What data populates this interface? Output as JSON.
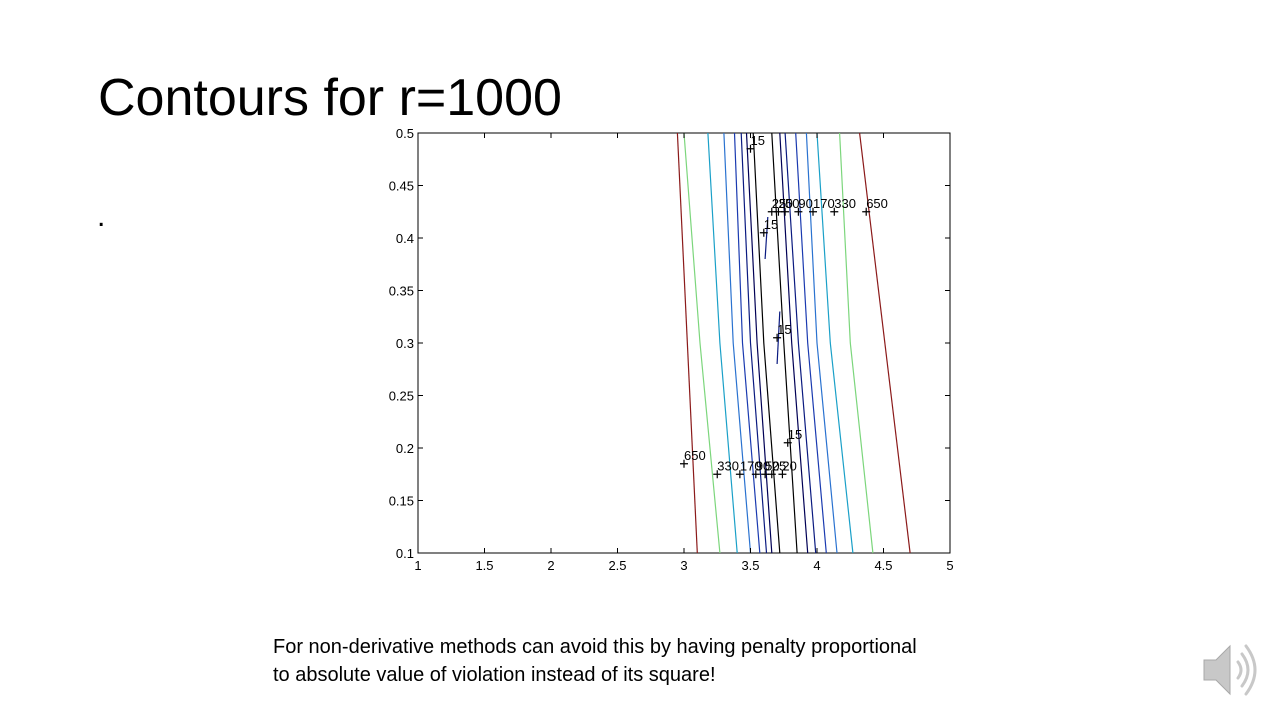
{
  "slide": {
    "title": "Contours for r=1000",
    "bullet": ".",
    "caption_line1": "For non-derivative methods can avoid this by having penalty proportional",
    "caption_line2": "to absolute value of violation instead of its square!",
    "audio_icon": "speaker-icon"
  },
  "chart_data": {
    "type": "contour",
    "title": "",
    "xlabel": "",
    "ylabel": "",
    "xlim": [
      1,
      5
    ],
    "ylim": [
      0.1,
      0.5
    ],
    "xticks": [
      "1",
      "1.5",
      "2",
      "2.5",
      "3",
      "3.5",
      "4",
      "4.5",
      "5"
    ],
    "yticks": [
      "0.1",
      "0.15",
      "0.2",
      "0.25",
      "0.3",
      "0.35",
      "0.4",
      "0.45",
      "0.5"
    ],
    "grid": false,
    "colors": {
      "650": "#8b1a1a",
      "330": "#7cd67c",
      "170": "#1aa0c8",
      "90": "#2a72d0",
      "50": "#1a3ab0",
      "25": "#0a1a80",
      "20": "#000055",
      "15": "#000000"
    },
    "contours": [
      {
        "level": "650",
        "points": [
          [
            3.1,
            0.1
          ],
          [
            2.95,
            0.5
          ]
        ]
      },
      {
        "level": "650",
        "points": [
          [
            4.7,
            0.1
          ],
          [
            4.32,
            0.5
          ]
        ]
      },
      {
        "level": "330",
        "points": [
          [
            3.27,
            0.1
          ],
          [
            3.12,
            0.3
          ],
          [
            3.0,
            0.5
          ]
        ]
      },
      {
        "level": "330",
        "points": [
          [
            4.42,
            0.1
          ],
          [
            4.25,
            0.3
          ],
          [
            4.17,
            0.5
          ]
        ]
      },
      {
        "level": "170",
        "points": [
          [
            3.4,
            0.1
          ],
          [
            3.27,
            0.3
          ],
          [
            3.18,
            0.5
          ]
        ]
      },
      {
        "level": "170",
        "points": [
          [
            4.27,
            0.1
          ],
          [
            4.1,
            0.3
          ],
          [
            4.0,
            0.5
          ]
        ]
      },
      {
        "level": "90",
        "points": [
          [
            3.5,
            0.1
          ],
          [
            3.37,
            0.3
          ],
          [
            3.3,
            0.5
          ]
        ]
      },
      {
        "level": "90",
        "points": [
          [
            4.15,
            0.1
          ],
          [
            4.0,
            0.3
          ],
          [
            3.92,
            0.5
          ]
        ]
      },
      {
        "level": "50",
        "points": [
          [
            3.57,
            0.1
          ],
          [
            3.44,
            0.3
          ],
          [
            3.38,
            0.5
          ]
        ]
      },
      {
        "level": "50",
        "points": [
          [
            4.07,
            0.1
          ],
          [
            3.93,
            0.3
          ],
          [
            3.84,
            0.5
          ]
        ]
      },
      {
        "level": "25",
        "points": [
          [
            3.62,
            0.1
          ],
          [
            3.5,
            0.3
          ],
          [
            3.43,
            0.5
          ]
        ]
      },
      {
        "level": "25",
        "points": [
          [
            3.99,
            0.1
          ],
          [
            3.86,
            0.3
          ],
          [
            3.76,
            0.5
          ]
        ]
      },
      {
        "level": "20",
        "points": [
          [
            3.66,
            0.1
          ],
          [
            3.55,
            0.3
          ],
          [
            3.47,
            0.5
          ]
        ]
      },
      {
        "level": "20",
        "points": [
          [
            3.93,
            0.1
          ],
          [
            3.81,
            0.3
          ],
          [
            3.72,
            0.5
          ]
        ]
      },
      {
        "level": "15",
        "points": [
          [
            3.72,
            0.1
          ],
          [
            3.6,
            0.3
          ],
          [
            3.52,
            0.5
          ]
        ]
      },
      {
        "level": "15",
        "points": [
          [
            3.85,
            0.1
          ],
          [
            3.75,
            0.3
          ],
          [
            3.66,
            0.5
          ]
        ]
      },
      {
        "level": "25",
        "points": [
          [
            3.61,
            0.38
          ],
          [
            3.63,
            0.42
          ]
        ]
      },
      {
        "level": "25",
        "points": [
          [
            3.7,
            0.28
          ],
          [
            3.72,
            0.33
          ]
        ]
      }
    ],
    "labels": [
      {
        "text": "15",
        "x": 3.5,
        "y": 0.485
      },
      {
        "text": "15",
        "x": 3.6,
        "y": 0.405
      },
      {
        "text": "15",
        "x": 3.7,
        "y": 0.305
      },
      {
        "text": "15",
        "x": 3.78,
        "y": 0.205
      },
      {
        "text": "650",
        "x": 3.0,
        "y": 0.185
      },
      {
        "text": "650",
        "x": 4.37,
        "y": 0.425
      },
      {
        "text": "330",
        "x": 3.25,
        "y": 0.175
      },
      {
        "text": "330",
        "x": 4.13,
        "y": 0.425
      },
      {
        "text": "170",
        "x": 3.42,
        "y": 0.175
      },
      {
        "text": "170",
        "x": 3.97,
        "y": 0.425
      },
      {
        "text": "90",
        "x": 3.54,
        "y": 0.175
      },
      {
        "text": "90",
        "x": 3.86,
        "y": 0.425
      },
      {
        "text": "50",
        "x": 3.61,
        "y": 0.175
      },
      {
        "text": "50",
        "x": 3.76,
        "y": 0.425
      },
      {
        "text": "25",
        "x": 3.66,
        "y": 0.175
      },
      {
        "text": "25",
        "x": 3.66,
        "y": 0.425
      },
      {
        "text": "20",
        "x": 3.74,
        "y": 0.175
      },
      {
        "text": "20",
        "x": 3.71,
        "y": 0.425
      }
    ]
  }
}
